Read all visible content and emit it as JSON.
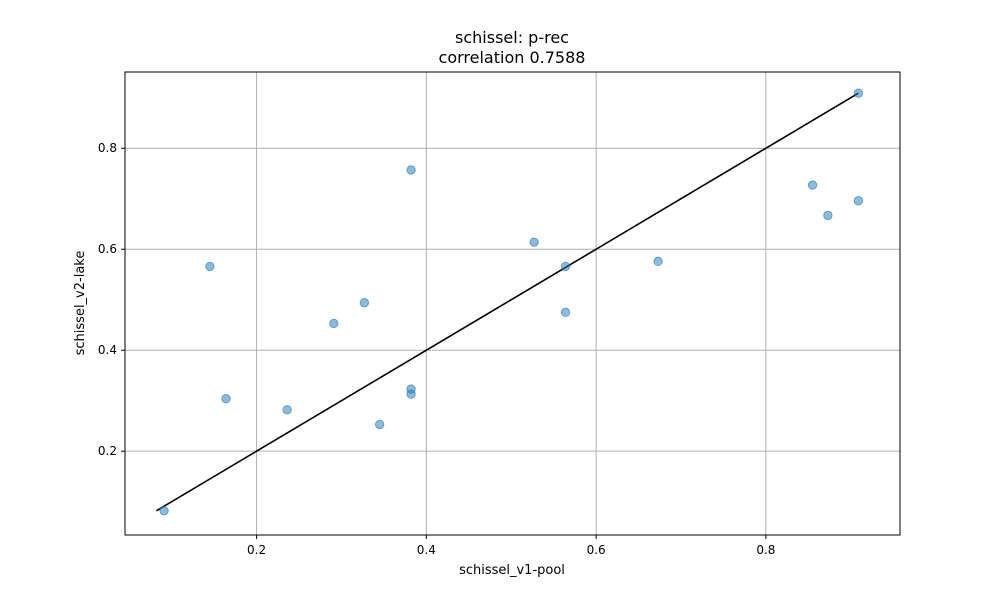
{
  "chart_data": {
    "type": "scatter",
    "title": "schissel: p-rec",
    "subtitle": "correlation 0.7588",
    "xlabel": "schissel_v1-pool",
    "ylabel": "schissel_v2-lake",
    "xlim": [
      0.045,
      0.958
    ],
    "ylim": [
      0.034,
      0.951
    ],
    "xticks": [
      0.2,
      0.4,
      0.6,
      0.8
    ],
    "yticks": [
      0.2,
      0.4,
      0.6,
      0.8
    ],
    "xtick_labels": [
      "0.2",
      "0.4",
      "0.6",
      "0.8"
    ],
    "ytick_labels": [
      "0.2",
      "0.4",
      "0.6",
      "0.8"
    ],
    "grid": true,
    "point_color": "#1f77b4",
    "line_color": "#000000",
    "points": [
      {
        "x": 0.091,
        "y": 0.082
      },
      {
        "x": 0.145,
        "y": 0.566
      },
      {
        "x": 0.164,
        "y": 0.304
      },
      {
        "x": 0.236,
        "y": 0.282
      },
      {
        "x": 0.291,
        "y": 0.453
      },
      {
        "x": 0.327,
        "y": 0.494
      },
      {
        "x": 0.345,
        "y": 0.253
      },
      {
        "x": 0.382,
        "y": 0.757
      },
      {
        "x": 0.382,
        "y": 0.323
      },
      {
        "x": 0.382,
        "y": 0.313
      },
      {
        "x": 0.527,
        "y": 0.614
      },
      {
        "x": 0.564,
        "y": 0.566
      },
      {
        "x": 0.564,
        "y": 0.475
      },
      {
        "x": 0.673,
        "y": 0.576
      },
      {
        "x": 0.855,
        "y": 0.727
      },
      {
        "x": 0.873,
        "y": 0.667
      },
      {
        "x": 0.909,
        "y": 0.909
      },
      {
        "x": 0.909,
        "y": 0.696
      }
    ],
    "fit_line": {
      "x": [
        0.082,
        0.909
      ],
      "y": [
        0.082,
        0.909
      ]
    }
  }
}
